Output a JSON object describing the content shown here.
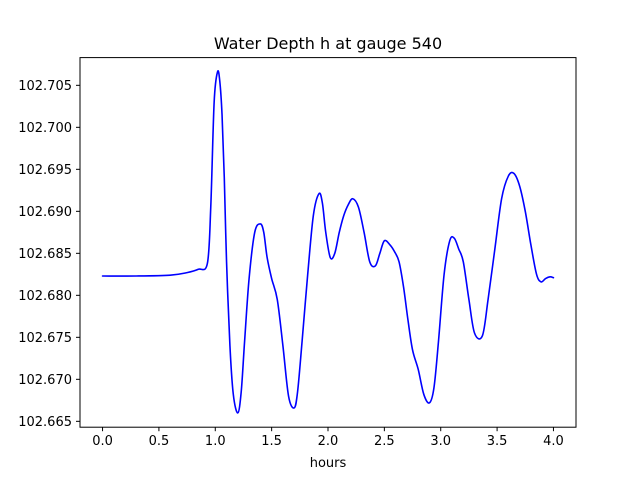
{
  "chart_data": {
    "type": "line",
    "title": "Water Depth h at gauge 540",
    "xlabel": "hours",
    "ylabel": "",
    "xlim": [
      -0.2,
      4.2
    ],
    "ylim": [
      102.6643,
      102.7083
    ],
    "xticks": [
      0.0,
      0.5,
      1.0,
      1.5,
      2.0,
      2.5,
      3.0,
      3.5,
      4.0
    ],
    "xtick_labels": [
      "0.0",
      "0.5",
      "1.0",
      "1.5",
      "2.0",
      "2.5",
      "3.0",
      "3.5",
      "4.0"
    ],
    "yticks": [
      102.665,
      102.67,
      102.675,
      102.68,
      102.685,
      102.69,
      102.695,
      102.7,
      102.705
    ],
    "ytick_labels": [
      "102.665",
      "102.670",
      "102.675",
      "102.680",
      "102.685",
      "102.690",
      "102.695",
      "102.700",
      "102.705"
    ],
    "grid": false,
    "series": [
      {
        "color": "#0000ff",
        "x": [
          0.0,
          0.3,
          0.6,
          0.75,
          0.85,
          0.93,
          0.96,
          0.99,
          1.02,
          1.04,
          1.06,
          1.08,
          1.1,
          1.13,
          1.16,
          1.2,
          1.23,
          1.26,
          1.3,
          1.35,
          1.4,
          1.43,
          1.46,
          1.5,
          1.55,
          1.6,
          1.65,
          1.7,
          1.73,
          1.77,
          1.82,
          1.87,
          1.92,
          1.95,
          1.98,
          2.02,
          2.06,
          2.1,
          2.14,
          2.18,
          2.22,
          2.27,
          2.32,
          2.37,
          2.42,
          2.46,
          2.5,
          2.55,
          2.59,
          2.63,
          2.67,
          2.71,
          2.75,
          2.8,
          2.85,
          2.9,
          2.94,
          2.98,
          3.03,
          3.08,
          3.12,
          3.16,
          3.2,
          3.25,
          3.3,
          3.37,
          3.42,
          3.48,
          3.54,
          3.6,
          3.65,
          3.7,
          3.75,
          3.8,
          3.85,
          3.89,
          3.93,
          3.97,
          4.0
        ],
        "y": [
          102.6823,
          102.6823,
          102.6824,
          102.6827,
          102.6831,
          102.6838,
          102.6905,
          102.703,
          102.7066,
          102.7055,
          102.7015,
          102.694,
          102.684,
          102.674,
          102.6682,
          102.666,
          102.6685,
          102.6745,
          102.682,
          102.6875,
          102.6885,
          102.6875,
          102.6845,
          102.682,
          102.6795,
          102.674,
          102.668,
          102.6666,
          102.6685,
          102.6745,
          102.6825,
          102.6895,
          102.6921,
          102.691,
          102.6875,
          102.6845,
          102.685,
          102.6875,
          102.6895,
          102.6908,
          102.6915,
          102.6905,
          102.6875,
          102.684,
          102.6835,
          102.685,
          102.6865,
          102.686,
          102.6852,
          102.684,
          102.681,
          102.677,
          102.6735,
          102.6712,
          102.6682,
          102.6672,
          102.669,
          102.6745,
          102.6825,
          102.6865,
          102.6868,
          102.6855,
          102.684,
          102.6795,
          102.6755,
          102.6752,
          102.6795,
          102.6855,
          102.6915,
          102.6942,
          102.6945,
          102.693,
          102.69,
          102.686,
          102.6825,
          102.6816,
          102.682,
          102.6822,
          102.6821
        ]
      }
    ]
  }
}
